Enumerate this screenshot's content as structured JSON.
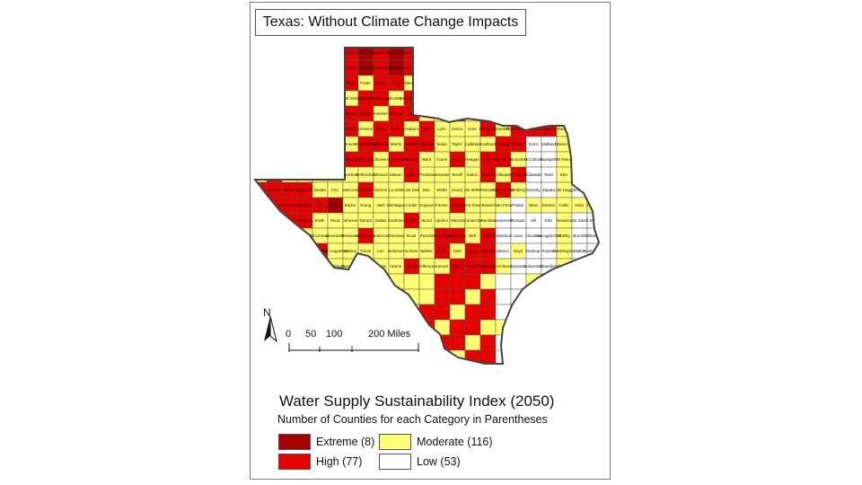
{
  "map": {
    "title": "Texas: Without Climate Change Impacts",
    "north_label": "N",
    "scale": {
      "labels": [
        "0",
        "50",
        "100",
        "200 Miles"
      ]
    },
    "colors": {
      "extreme": "#a80000",
      "high": "#e60000",
      "moderate": "#ffff73",
      "low": "#ffffff",
      "border": "#444444"
    },
    "county_labels": [
      "Dallam",
      "Sherman",
      "Hansford",
      "Ochiltree",
      "Lipscomb",
      "Hartley",
      "Moore",
      "Hutchinson",
      "Roberts",
      "Hemphill",
      "Oldham",
      "Potter",
      "Carson",
      "Gray",
      "Wheeler",
      "Deaf Smith",
      "Randall",
      "Armstrong",
      "Donley",
      "Collingsworth",
      "Parmer",
      "Castro",
      "Swisher",
      "Briscoe",
      "Hall",
      "Childress",
      "Bailey",
      "Lamb",
      "Hale",
      "Floyd",
      "Motley",
      "Cottle",
      "Hardeman",
      "Foard",
      "Cochran",
      "Hockley",
      "Lubbock",
      "Crosby",
      "Dickens",
      "King",
      "Knox",
      "Yoakum",
      "Terry",
      "Lynn",
      "Garza",
      "Kent",
      "Stonewall",
      "Haskell",
      "Throckmorton",
      "Gaines",
      "Dawson",
      "Borden",
      "Scurry",
      "Fisher",
      "Jones",
      "Shackelford",
      "Andrews",
      "Martin",
      "Howard",
      "Mitchell",
      "Nolan",
      "Taylor",
      "Callahan",
      "Eastland",
      "Loving",
      "Winkler",
      "Ector",
      "Midland",
      "Glasscock",
      "Sterling",
      "Coke",
      "Runnels",
      "Coleman",
      "Brown",
      "Culberson",
      "Reeves",
      "Ward",
      "Crane",
      "Upton",
      "Reagan",
      "Irion",
      "Tom Green",
      "Concho",
      "McCulloch",
      "Hudspeth",
      "El Paso",
      "Jeff Davis",
      "Pecos",
      "Crockett",
      "Schleicher",
      "Menard",
      "Mason",
      "Llano",
      "Presidio",
      "Brewster",
      "Terrell",
      "Sutton",
      "Kimble",
      "Gillespie",
      "Val Verde",
      "Edwards",
      "Real",
      "Kerr",
      "Kendall",
      "Kinney",
      "Uvalde",
      "Medina",
      "Bexar",
      "Maverick",
      "Zavala",
      "Frio",
      "Atascosa",
      "Wilson",
      "Dimmit",
      "La Salle",
      "Live Oak",
      "Bee",
      "Webb",
      "Duval",
      "Jim Wells",
      "Nueces",
      "San Patricio",
      "Kleberg",
      "Kenedy",
      "Zapata",
      "Jim Hogg",
      "Brooks",
      "Starr",
      "Hidalgo",
      "Willacy",
      "Cameron",
      "Wichita",
      "Clay",
      "Archer",
      "Baylor",
      "Young",
      "Jack",
      "Montague",
      "Cooke",
      "Grayson",
      "Fannin",
      "Lamar",
      "Red River",
      "Bowie",
      "Palo Pinto",
      "Parker",
      "Wise",
      "Denton",
      "Collin",
      "Hunt",
      "Hopkins",
      "Titus",
      "Morris",
      "Cass",
      "Stephens",
      "Erath",
      "Hood",
      "Johnson",
      "Tarrant",
      "Dallas",
      "Kaufman",
      "Rains",
      "Wood",
      "Upshur",
      "Marion",
      "Comanche",
      "Hamilton",
      "Somervell",
      "Bosque",
      "Hill",
      "Ellis",
      "Navarro",
      "Van Zandt",
      "Smith",
      "Gregg",
      "Harrison",
      "Mills",
      "Coryell",
      "McLennan",
      "Limestone",
      "Freestone",
      "Henderson",
      "Anderson",
      "Cherokee",
      "Rusk",
      "Panola",
      "San Saba",
      "Lampasas",
      "Bell",
      "Falls",
      "Robertson",
      "Leon",
      "Houston",
      "Nacogdoches",
      "Shelby",
      "Burnet",
      "Williamson",
      "Milam",
      "Brazos",
      "Madison",
      "Trinity",
      "Angelina",
      "San Augustine",
      "Sabine",
      "Travis",
      "Lee",
      "Burleson",
      "Grimes",
      "Walker",
      "Polk",
      "Tyler",
      "Jasper",
      "Newton",
      "Blanco",
      "Hays",
      "Bastrop",
      "Fayette",
      "Washington",
      "Waller",
      "Montgomery",
      "San Jacinto",
      "Hardin",
      "Orange",
      "Comal",
      "Caldwell",
      "Guadalupe",
      "Gonzales",
      "Colorado",
      "Austin",
      "Harris",
      "Liberty",
      "Jefferson",
      "Karnes",
      "DeWitt",
      "Lavaca",
      "Wharton",
      "Fort Bend",
      "Brazoria",
      "Galveston",
      "Chambers",
      "Goliad",
      "Victoria",
      "Jackson",
      "Matagorda",
      "Calhoun",
      "Refugio",
      "Aransas"
    ]
  },
  "legend": {
    "title": "Water Supply Sustainability Index (2050)",
    "subtitle": "Number of Counties for each Category in Parentheses",
    "items": [
      {
        "label": "Extreme (8)",
        "color": "#a80000"
      },
      {
        "label": "Moderate (116)",
        "color": "#ffff73"
      },
      {
        "label": "High (77)",
        "color": "#e60000"
      },
      {
        "label": "Low (53)",
        "color": "#ffffff"
      }
    ]
  }
}
